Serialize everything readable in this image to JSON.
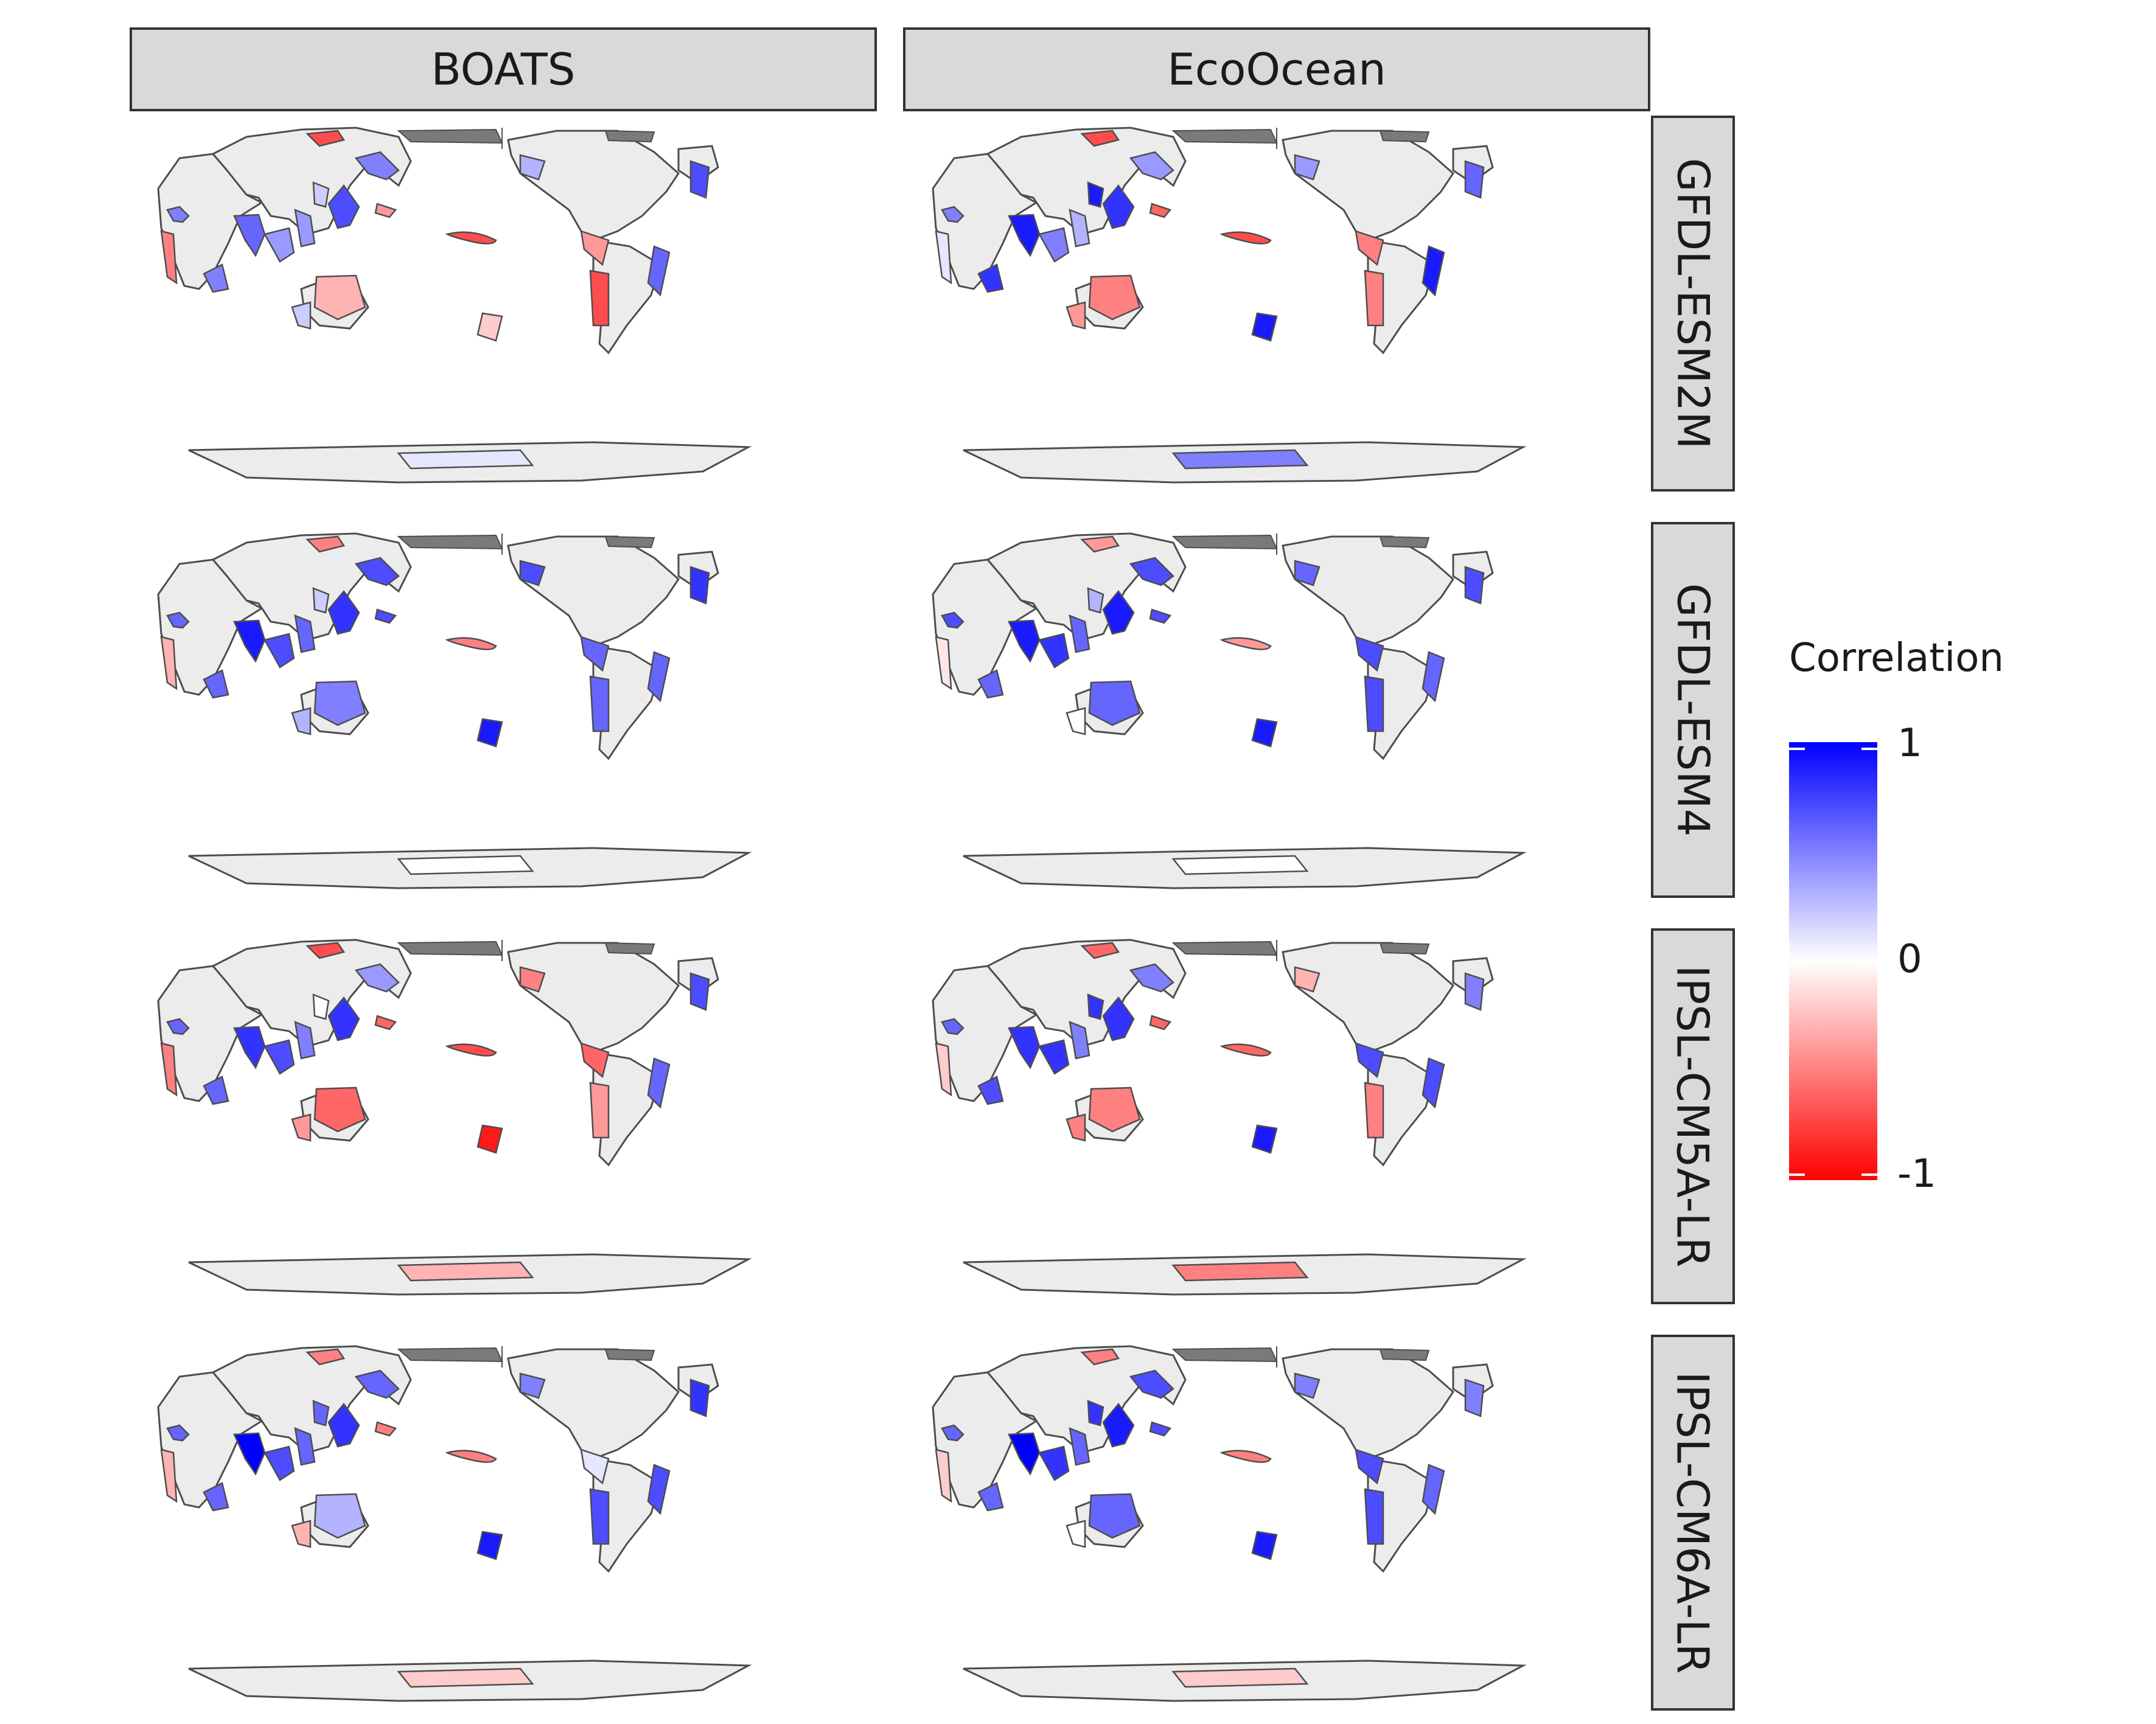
{
  "columns": [
    "BOATS",
    "EcoOcean"
  ],
  "rows": [
    "GFDL-ESM2M",
    "GFDL-ESM4",
    "IPSL-CM5A-LR",
    "IPSL-CM6A-LR"
  ],
  "legend": {
    "title": "Correlation",
    "ticks": [
      "1",
      "0",
      "-1"
    ],
    "scale": {
      "high": "#0000ff",
      "mid": "#ffffff",
      "low": "#ff0000",
      "min": -1,
      "max": 1,
      "midpoint": 0
    }
  },
  "colors": {
    "land": "#ececec",
    "missing": "#7a7a7a",
    "outline": "#4d4d4d",
    "strip": "#d9d9d9"
  },
  "region_values": {
    "GFDL-ESM2M": {
      "BOATS": [
        0.5,
        0.6,
        0.4,
        0.4,
        0.2,
        0.7,
        -0.7,
        -0.4,
        0.5,
        -0.5,
        0.5,
        -0.3,
        0.2,
        -0.2,
        -0.4,
        -0.7,
        0.6,
        0.7,
        0.3,
        0.1
      ],
      "EcoOcean": [
        0.5,
        0.9,
        0.5,
        0.3,
        0.9,
        0.8,
        -0.7,
        -0.6,
        0.4,
        0.1,
        0.8,
        -0.5,
        -0.4,
        0.9,
        -0.5,
        -0.5,
        0.9,
        0.6,
        0.4,
        0.5
      ]
    },
    "GFDL-ESM4": {
      "BOATS": [
        0.6,
        0.9,
        0.7,
        0.6,
        0.2,
        0.8,
        -0.5,
        0.7,
        0.7,
        -0.3,
        0.6,
        0.5,
        0.3,
        0.9,
        0.6,
        0.6,
        0.6,
        0.8,
        0.7,
        0.0
      ],
      "EcoOcean": [
        0.7,
        0.9,
        0.8,
        0.6,
        0.3,
        0.9,
        -0.4,
        0.7,
        0.7,
        -0.1,
        0.6,
        0.6,
        0.0,
        0.9,
        0.7,
        0.7,
        0.6,
        0.7,
        0.6,
        0.0
      ]
    },
    "IPSL-CM5A-LR": {
      "BOATS": [
        0.6,
        0.8,
        0.7,
        0.5,
        0.0,
        0.8,
        -0.7,
        -0.6,
        0.4,
        -0.5,
        0.6,
        -0.6,
        -0.4,
        -0.9,
        -0.6,
        -0.4,
        0.6,
        0.7,
        -0.5,
        -0.3
      ],
      "EcoOcean": [
        0.6,
        0.8,
        0.8,
        0.5,
        0.8,
        0.8,
        -0.6,
        -0.6,
        0.5,
        -0.2,
        0.7,
        -0.5,
        -0.5,
        0.9,
        0.7,
        -0.5,
        0.7,
        0.5,
        -0.3,
        -0.5
      ]
    },
    "IPSL-CM6A-LR": {
      "BOATS": [
        0.6,
        1.0,
        0.7,
        0.6,
        0.6,
        0.8,
        -0.5,
        -0.5,
        0.6,
        -0.3,
        0.6,
        0.3,
        -0.3,
        0.9,
        0.1,
        0.7,
        0.7,
        0.8,
        0.5,
        -0.2
      ],
      "EcoOcean": [
        0.6,
        1.0,
        0.8,
        0.6,
        0.8,
        0.9,
        -0.5,
        0.7,
        0.7,
        -0.2,
        0.6,
        0.6,
        0.0,
        0.9,
        0.7,
        0.7,
        0.6,
        0.5,
        0.5,
        -0.2
      ]
    }
  }
}
